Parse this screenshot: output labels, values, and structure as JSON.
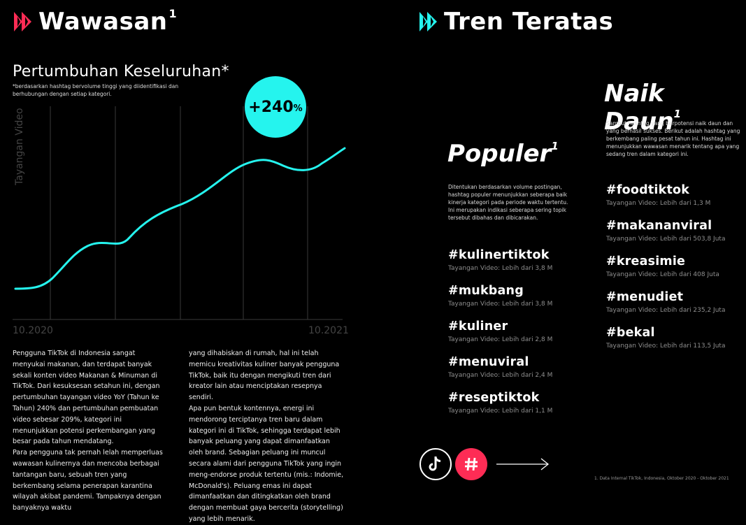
{
  "left_header": {
    "title": "Wawasan",
    "sup": "1"
  },
  "right_header": {
    "title": "Tren Teratas"
  },
  "growth": {
    "title": "Pertumbuhan Keseluruhan*",
    "note": "*berdasarkan hashtag bervolume tinggi yang diidentifikasi dan berhubungan dengan setiap kategori.",
    "badge": "+240",
    "badge_unit": "%",
    "y_axis_label": "Tayangan Video",
    "x_start": "10.2020",
    "x_end": "10.2021"
  },
  "body_text": {
    "col1": [
      "Pengguna TikTok di Indonesia sangat menyukai makanan, dan terdapat banyak sekali konten video Makanan & Minuman di TikTok. Dari kesuksesan setahun ini, dengan pertumbuhan tayangan video YoY (Tahun ke Tahun) 240% dan pertumbuhan pembuatan video sebesar 209%, kategori ini menunjukkan potensi perkembangan yang besar pada tahun mendatang.",
      "Para pengguna tak pernah lelah memperluas wawasan kulinernya dan mencoba berbagai tantangan baru, sebuah tren yang berkembang selama penerapan karantina wilayah akibat pandemi. Tampaknya dengan banyaknya waktu"
    ],
    "col2": [
      "yang dihabiskan di rumah, hal ini telah memicu kreativitas kuliner banyak pengguna TikTok, baik itu dengan mengikuti tren dari kreator lain atau menciptakan resepnya sendiri.",
      "Apa pun bentuk kontennya, energi ini mendorong terciptanya tren baru dalam kategori ini di TikTok, sehingga terdapat lebih banyak peluang yang dapat dimanfaatkan oleh brand. Sebagian peluang ini muncul secara alami dari pengguna TikTok yang ingin meng-endorse produk tertentu (mis.: Indomie, McDonald's). Peluang emas ini dapat dimanfaatkan dan ditingkatkan oleh brand dengan membuat gaya bercerita (storytelling) yang lebih menarik."
    ]
  },
  "populer": {
    "title": "Populer",
    "sup": "1",
    "desc": "Ditentukan berdasarkan volume postingan, hashtag populer menunjukkan seberapa baik kinerja kategori pada periode waktu tertentu. Ini merupakan indikasi seberapa sering topik tersebut dibahas dan dibicarakan.",
    "items": [
      {
        "tag": "#kulinertiktok",
        "views": "Tayangan Video: Lebih dari 3,8 M"
      },
      {
        "tag": "#mukbang",
        "views": "Tayangan Video: Lebih dari 3,8 M"
      },
      {
        "tag": "#kuliner",
        "views": "Tayangan Video: Lebih dari 2,8 M"
      },
      {
        "tag": "#menuviral",
        "views": "Tayangan Video: Lebih dari 2,4 M"
      },
      {
        "tag": "#reseptiktok",
        "views": "Tayangan Video: Lebih dari 1,1 M"
      }
    ]
  },
  "naik_daun": {
    "title": "Naik Daun",
    "sup": "1",
    "desc": "Sambut hashtag yang berpotensi naik daun dan yang berhasil sukses. Berikut adalah hashtag yang berkembang paling pesat tahun ini. Hashtag ini menunjukkan wawasan menarik tentang apa yang sedang tren dalam kategori ini.",
    "items": [
      {
        "tag": "#foodtiktok",
        "views": "Tayangan Video: Lebih dari 1,3 M"
      },
      {
        "tag": "#makananviral",
        "views": "Tayangan Video: Lebih dari 503,8 Juta"
      },
      {
        "tag": "#kreasimie",
        "views": "Tayangan Video: Lebih dari 408 Juta"
      },
      {
        "tag": "#menudiet",
        "views": "Tayangan Video: Lebih dari 235,2 Juta"
      },
      {
        "tag": "#bekal",
        "views": "Tayangan Video: Lebih dari 113,5 Juta"
      }
    ]
  },
  "footnote": "1. Data Internal TikTok, Indonesia, Oktober 2020 - Oktober 2021",
  "colors": {
    "accent_red": "#fe2c55",
    "accent_cyan": "#25f4ee",
    "background": "#000000"
  },
  "icons": [
    "tiktok-icon",
    "hashtag-icon",
    "arrow-right-icon"
  ]
}
